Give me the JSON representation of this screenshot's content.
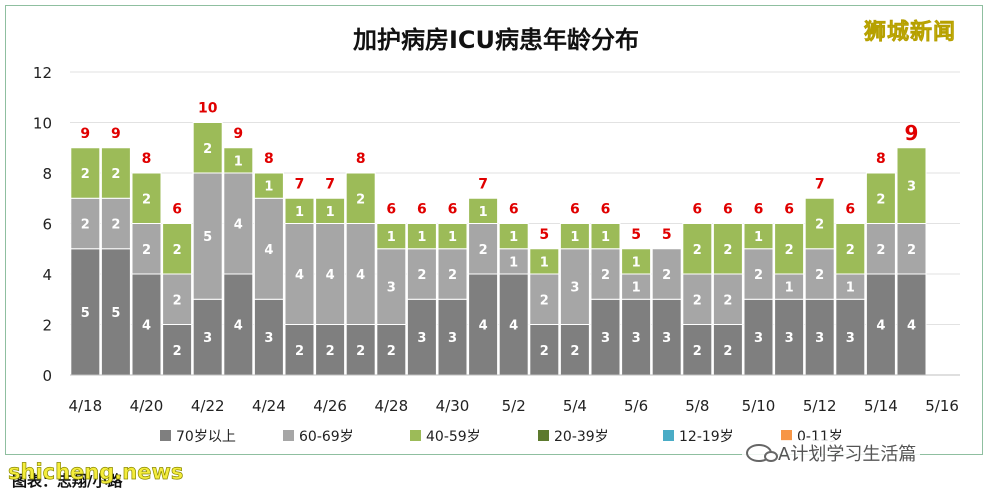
{
  "brand": "狮城新闻",
  "footer": {
    "watermark": "shicheng.news",
    "caption": "图表：志翔/小路",
    "wechat_account": "A计划学习生活篇"
  },
  "colors": {
    "70+": "#7f7f7f",
    "60-69": "#a6a6a6",
    "40-59": "#9cbb58",
    "20-39": "#5d7a2e",
    "12-19": "#4aacc6",
    "0-11": "#f79646",
    "total_label": "#e00000"
  },
  "chart_data": {
    "type": "bar",
    "stacked": true,
    "title": "加护病房ICU病患年龄分布",
    "xlabel": "",
    "ylabel": "",
    "ylim": [
      0,
      12
    ],
    "yticks": [
      0,
      2,
      4,
      6,
      8,
      10,
      12
    ],
    "categories": [
      "4/18",
      "4/19",
      "4/20",
      "4/21",
      "4/22",
      "4/23",
      "4/24",
      "4/25",
      "4/26",
      "4/27",
      "4/28",
      "4/29",
      "4/30",
      "5/1",
      "5/2",
      "5/3",
      "5/4",
      "5/5",
      "5/6",
      "5/7",
      "5/8",
      "5/9",
      "5/10",
      "5/11",
      "5/12",
      "5/13",
      "5/14",
      "5/15"
    ],
    "xtick_labels": [
      "4/18",
      "4/20",
      "4/22",
      "4/24",
      "4/26",
      "4/28",
      "4/30",
      "5/2",
      "5/4",
      "5/6",
      "5/8",
      "5/10",
      "5/12",
      "5/14",
      "5/16"
    ],
    "grid": true,
    "legend_position": "bottom",
    "series": [
      {
        "name": "70岁以上",
        "values": [
          5,
          5,
          4,
          2,
          3,
          4,
          3,
          2,
          2,
          2,
          2,
          3,
          3,
          4,
          4,
          2,
          2,
          3,
          3,
          3,
          2,
          2,
          3,
          3,
          3,
          3,
          4,
          4
        ]
      },
      {
        "name": "60-69岁",
        "values": [
          2,
          2,
          2,
          2,
          5,
          4,
          4,
          4,
          4,
          4,
          3,
          2,
          2,
          2,
          1,
          2,
          3,
          2,
          1,
          2,
          2,
          2,
          2,
          1,
          2,
          1,
          2,
          2
        ]
      },
      {
        "name": "40-59岁",
        "values": [
          2,
          2,
          2,
          2,
          2,
          1,
          1,
          1,
          1,
          2,
          1,
          1,
          1,
          1,
          1,
          1,
          1,
          1,
          1,
          0,
          2,
          2,
          1,
          2,
          2,
          2,
          2,
          3
        ]
      },
      {
        "name": "20-39岁",
        "values": [
          0,
          0,
          0,
          0,
          0,
          0,
          0,
          0,
          0,
          0,
          0,
          0,
          0,
          0,
          0,
          0,
          0,
          0,
          0,
          0,
          0,
          0,
          0,
          0,
          0,
          0,
          0,
          0
        ]
      },
      {
        "name": "12-19岁",
        "values": [
          0,
          0,
          0,
          0,
          0,
          0,
          0,
          0,
          0,
          0,
          0,
          0,
          0,
          0,
          0,
          0,
          0,
          0,
          0,
          0,
          0,
          0,
          0,
          0,
          0,
          0,
          0,
          0
        ]
      },
      {
        "name": "0-11岁",
        "values": [
          0,
          0,
          0,
          0,
          0,
          0,
          0,
          0,
          0,
          0,
          0,
          0,
          0,
          0,
          0,
          0,
          0,
          0,
          0,
          0,
          0,
          0,
          0,
          0,
          0,
          0,
          0,
          0
        ]
      }
    ],
    "totals": [
      9,
      9,
      8,
      6,
      10,
      9,
      8,
      7,
      7,
      8,
      6,
      6,
      6,
      7,
      6,
      5,
      6,
      6,
      5,
      5,
      6,
      6,
      6,
      6,
      7,
      6,
      8,
      9
    ]
  }
}
